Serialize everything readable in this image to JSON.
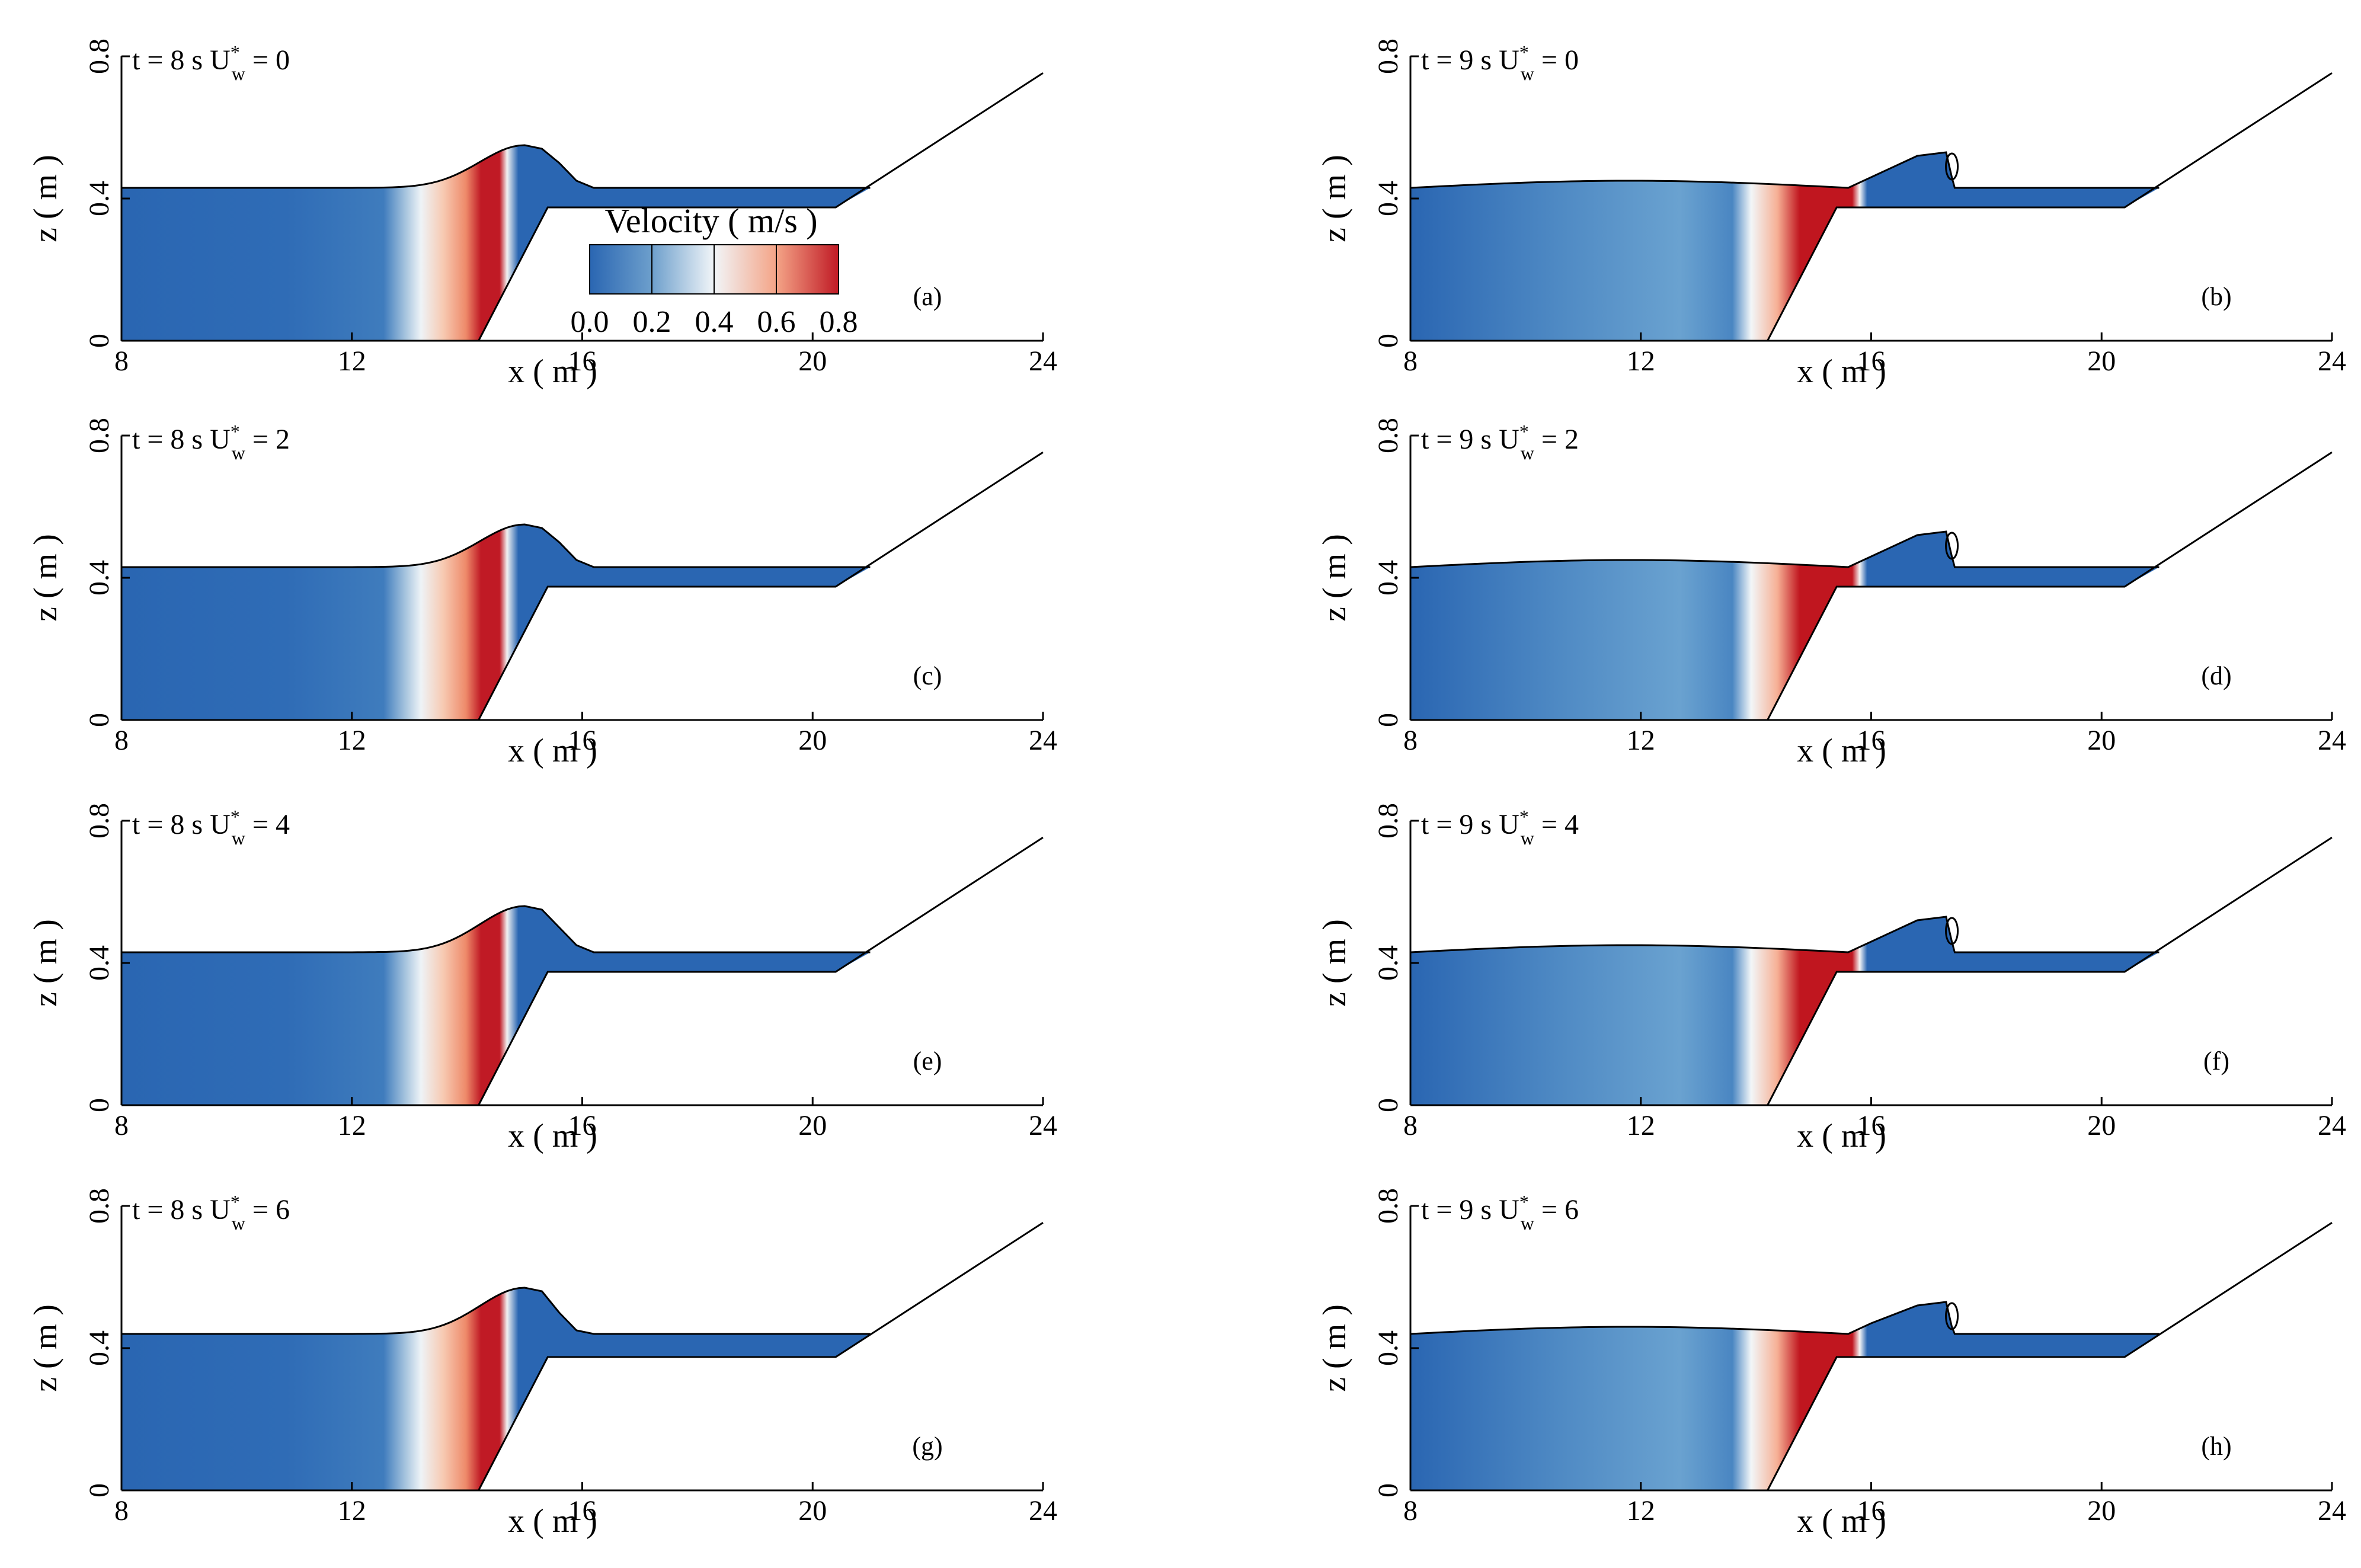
{
  "figure": {
    "xlabel": "x ( m )",
    "ylabel": "z ( m )",
    "xticks": [
      8,
      12,
      16,
      20,
      24
    ],
    "yticks": [
      0,
      0.4,
      0.8
    ],
    "xlim": [
      8,
      24
    ],
    "ylim": [
      0,
      0.8
    ]
  },
  "colorbar": {
    "title": "Velocity ( m/s )",
    "ticks": [
      "0.0",
      "0.2",
      "0.4",
      "0.6",
      "0.8"
    ],
    "range": [
      0,
      0.8
    ],
    "colors": [
      "#2a66b2",
      "#5b93c7",
      "#eef3f7",
      "#f6b095",
      "#c01a25"
    ]
  },
  "colors": {
    "water_low": "#2a66b2",
    "water_mid": "#6aa2d0",
    "water_white": "#f3f6f8",
    "water_high": "#c0161f",
    "line": "#000000"
  },
  "chart_data": [
    {
      "type": "heatmap",
      "id": "a",
      "label": "(a)",
      "t": "t = 8 s",
      "uw_symbol": "U",
      "uw_sup": "*",
      "uw_sub": "w",
      "uw_value": "= 0",
      "time_s": 8,
      "Uw": 0,
      "still_level_m": 0.43,
      "crest_x_m": 15.0,
      "crest_z_m": 0.55
    },
    {
      "type": "heatmap",
      "id": "b",
      "label": "(b)",
      "t": "t = 9 s",
      "uw_symbol": "U",
      "uw_sup": "*",
      "uw_sub": "w",
      "uw_value": "= 0",
      "time_s": 9,
      "Uw": 0,
      "still_level_m": 0.43,
      "crest_x_m": 17.2,
      "crest_z_m": 0.53
    },
    {
      "type": "heatmap",
      "id": "c",
      "label": "(c)",
      "t": "t = 8 s",
      "uw_symbol": "U",
      "uw_sup": "*",
      "uw_sub": "w",
      "uw_value": "= 2",
      "time_s": 8,
      "Uw": 2,
      "still_level_m": 0.43,
      "crest_x_m": 15.0,
      "crest_z_m": 0.55
    },
    {
      "type": "heatmap",
      "id": "d",
      "label": "(d)",
      "t": "t = 9 s",
      "uw_symbol": "U",
      "uw_sup": "*",
      "uw_sub": "w",
      "uw_value": "= 2",
      "time_s": 9,
      "Uw": 2,
      "still_level_m": 0.43,
      "crest_x_m": 17.2,
      "crest_z_m": 0.53
    },
    {
      "type": "heatmap",
      "id": "e",
      "label": "(e)",
      "t": "t = 8 s",
      "uw_symbol": "U",
      "uw_sup": "*",
      "uw_sub": "w",
      "uw_value": "= 4",
      "time_s": 8,
      "Uw": 4,
      "still_level_m": 0.43,
      "crest_x_m": 15.0,
      "crest_z_m": 0.56
    },
    {
      "type": "heatmap",
      "id": "f",
      "label": "(f)",
      "t": "t = 9 s",
      "uw_symbol": "U",
      "uw_sup": "*",
      "uw_sub": "w",
      "uw_value": "= 4",
      "time_s": 9,
      "Uw": 4,
      "still_level_m": 0.43,
      "crest_x_m": 17.2,
      "crest_z_m": 0.53
    },
    {
      "type": "heatmap",
      "id": "g",
      "label": "(g)",
      "t": "t = 8 s",
      "uw_symbol": "U",
      "uw_sup": "*",
      "uw_sub": "w",
      "uw_value": "= 6",
      "time_s": 8,
      "Uw": 6,
      "still_level_m": 0.44,
      "crest_x_m": 15.0,
      "crest_z_m": 0.57
    },
    {
      "type": "heatmap",
      "id": "h",
      "label": "(h)",
      "t": "t = 9 s",
      "uw_symbol": "U",
      "uw_sup": "*",
      "uw_sub": "w",
      "uw_value": "= 6",
      "time_s": 9,
      "Uw": 6,
      "still_level_m": 0.44,
      "crest_x_m": 17.2,
      "crest_z_m": 0.53
    }
  ]
}
